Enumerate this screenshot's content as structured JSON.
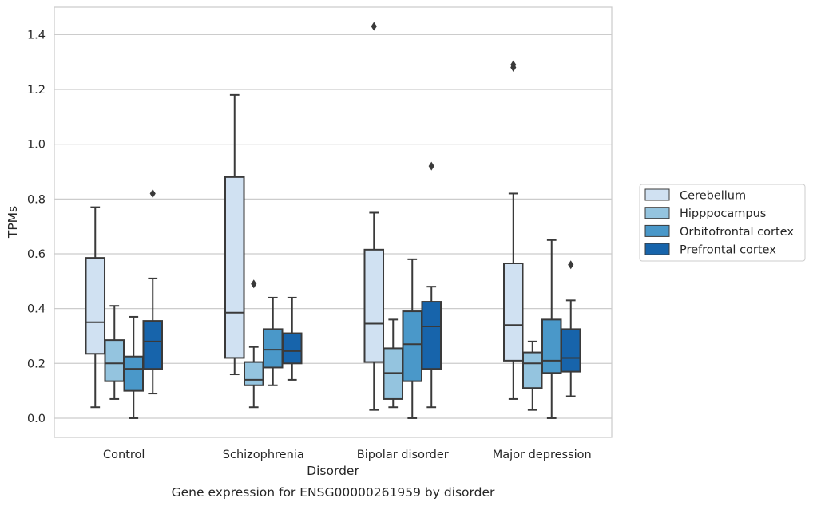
{
  "caption": "Gene expression for ENSG00000261959 by disorder",
  "colors": {
    "Cerebellum": "#d0e1f2",
    "Hipppocampus": "#94c4df",
    "Orbitofrontal cortex": "#4a98c9",
    "Prefrontal cortex": "#1764ab",
    "grid": "#cccccc",
    "box_line": "#3a3a3a"
  },
  "chart_data": {
    "type": "box",
    "xlabel": "Disorder",
    "ylabel": "TPMs",
    "ylim": [
      -0.07,
      1.5
    ],
    "yticks": [
      "0.0",
      "0.2",
      "0.4",
      "0.6",
      "0.8",
      "1.0",
      "1.2",
      "1.4"
    ],
    "grid": true,
    "legend_position": "right",
    "categories": [
      "Control",
      "Schizophrenia",
      "Bipolar disorder",
      "Major depression"
    ],
    "series": [
      {
        "name": "Cerebellum",
        "boxes": [
          {
            "whislo": 0.04,
            "q1": 0.235,
            "med": 0.35,
            "q3": 0.585,
            "whishi": 0.77,
            "fliers": []
          },
          {
            "whislo": 0.16,
            "q1": 0.22,
            "med": 0.385,
            "q3": 0.88,
            "whishi": 1.18,
            "fliers": []
          },
          {
            "whislo": 0.03,
            "q1": 0.205,
            "med": 0.345,
            "q3": 0.615,
            "whishi": 0.75,
            "fliers": [
              1.43
            ]
          },
          {
            "whislo": 0.07,
            "q1": 0.21,
            "med": 0.34,
            "q3": 0.565,
            "whishi": 0.82,
            "fliers": [
              1.28,
              1.29
            ]
          }
        ]
      },
      {
        "name": "Hipppocampus",
        "boxes": [
          {
            "whislo": 0.07,
            "q1": 0.135,
            "med": 0.2,
            "q3": 0.285,
            "whishi": 0.41,
            "fliers": []
          },
          {
            "whislo": 0.04,
            "q1": 0.12,
            "med": 0.14,
            "q3": 0.205,
            "whishi": 0.26,
            "fliers": [
              0.49
            ]
          },
          {
            "whislo": 0.04,
            "q1": 0.07,
            "med": 0.165,
            "q3": 0.255,
            "whishi": 0.36,
            "fliers": []
          },
          {
            "whislo": 0.03,
            "q1": 0.11,
            "med": 0.2,
            "q3": 0.24,
            "whishi": 0.28,
            "fliers": []
          }
        ]
      },
      {
        "name": "Orbitofrontal cortex",
        "boxes": [
          {
            "whislo": 0.0,
            "q1": 0.1,
            "med": 0.18,
            "q3": 0.225,
            "whishi": 0.37,
            "fliers": []
          },
          {
            "whislo": 0.12,
            "q1": 0.185,
            "med": 0.25,
            "q3": 0.325,
            "whishi": 0.44,
            "fliers": []
          },
          {
            "whislo": 0.0,
            "q1": 0.135,
            "med": 0.27,
            "q3": 0.39,
            "whishi": 0.58,
            "fliers": []
          },
          {
            "whislo": 0.0,
            "q1": 0.165,
            "med": 0.21,
            "q3": 0.36,
            "whishi": 0.65,
            "fliers": []
          }
        ]
      },
      {
        "name": "Prefrontal cortex",
        "boxes": [
          {
            "whislo": 0.09,
            "q1": 0.18,
            "med": 0.28,
            "q3": 0.355,
            "whishi": 0.51,
            "fliers": [
              0.82
            ]
          },
          {
            "whislo": 0.14,
            "q1": 0.2,
            "med": 0.245,
            "q3": 0.31,
            "whishi": 0.44,
            "fliers": []
          },
          {
            "whislo": 0.04,
            "q1": 0.18,
            "med": 0.335,
            "q3": 0.425,
            "whishi": 0.48,
            "fliers": [
              0.92
            ]
          },
          {
            "whislo": 0.08,
            "q1": 0.17,
            "med": 0.22,
            "q3": 0.325,
            "whishi": 0.43,
            "fliers": [
              0.56
            ]
          }
        ]
      }
    ]
  }
}
